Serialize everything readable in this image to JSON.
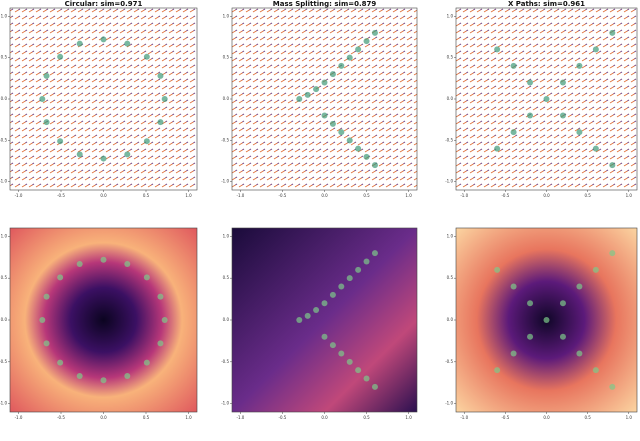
{
  "chart_data": [
    {
      "type": "scatter",
      "title": "Circular: sim=0.971",
      "color": "#3f9a78",
      "x": [
        0.72,
        0.67,
        0.51,
        0.28,
        0,
        -0.28,
        -0.51,
        -0.67,
        -0.72,
        -0.67,
        -0.51,
        -0.28,
        0,
        0.28,
        0.51,
        0.67
      ],
      "y": [
        0,
        0.28,
        0.51,
        0.67,
        0.72,
        0.67,
        0.51,
        0.28,
        0,
        -0.28,
        -0.51,
        -0.67,
        -0.72,
        -0.67,
        -0.51,
        -0.28
      ],
      "xlim": [
        -1.1,
        1.1
      ],
      "ylim": [
        -1.1,
        1.1
      ],
      "xticks": [
        {
          "value": -1,
          "label": "-1.0"
        },
        {
          "value": -0.5,
          "label": "-0.5"
        },
        {
          "value": 0,
          "label": "0.0"
        },
        {
          "value": 0.5,
          "label": "0.5"
        },
        {
          "value": 1,
          "label": "1.0"
        }
      ],
      "yticks": [
        {
          "value": -1,
          "label": "-1.0"
        },
        {
          "value": -0.5,
          "label": "-0.5"
        },
        {
          "value": 0,
          "label": "0.0"
        },
        {
          "value": 0.5,
          "label": "0.5"
        },
        {
          "value": 1,
          "label": "1.0"
        }
      ]
    },
    {
      "type": "scatter",
      "title": "Mass Splitting: sim=0.879",
      "color": "#3f9a78",
      "x": [
        -0.3,
        -0.2,
        -0.1,
        0,
        0.1,
        0.2,
        0.3,
        0.4,
        0.5,
        0.6,
        0,
        0.1,
        0.2,
        0.3,
        0.4,
        0.5,
        0.6
      ],
      "y": [
        0,
        0.05,
        0.12,
        0.2,
        0.3,
        0.4,
        0.5,
        0.6,
        0.7,
        0.8,
        -0.2,
        -0.3,
        -0.4,
        -0.5,
        -0.6,
        -0.7,
        -0.8
      ],
      "xlim": [
        -1.1,
        1.1
      ],
      "ylim": [
        -1.1,
        1.1
      ],
      "xticks": [
        {
          "value": -1,
          "label": "-1.0"
        },
        {
          "value": -0.5,
          "label": "-0.5"
        },
        {
          "value": 0,
          "label": "0.0"
        },
        {
          "value": 0.5,
          "label": "0.5"
        },
        {
          "value": 1,
          "label": "1.0"
        }
      ],
      "yticks": [
        {
          "value": -1,
          "label": "-1.0"
        },
        {
          "value": -0.5,
          "label": "-0.5"
        },
        {
          "value": 0,
          "label": "0.0"
        },
        {
          "value": 0.5,
          "label": "0.5"
        },
        {
          "value": 1,
          "label": "1.0"
        }
      ]
    },
    {
      "type": "scatter",
      "title": "X Paths: sim=0.961",
      "color": "#3f9a78",
      "x": [
        -0.6,
        -0.4,
        -0.2,
        0,
        0.2,
        0.4,
        0.6,
        0.8,
        -0.6,
        -0.4,
        -0.2,
        0.2,
        0.4,
        0.6,
        0.8
      ],
      "y": [
        0.6,
        0.4,
        0.2,
        0,
        -0.2,
        -0.4,
        -0.6,
        -0.8,
        -0.6,
        -0.4,
        -0.2,
        0.2,
        0.4,
        0.6,
        0.8
      ],
      "xlim": [
        -1.1,
        1.1
      ],
      "ylim": [
        -1.1,
        1.1
      ],
      "xticks": [
        {
          "value": -1,
          "label": "-1.0"
        },
        {
          "value": -0.5,
          "label": "-0.5"
        },
        {
          "value": 0,
          "label": "0.0"
        },
        {
          "value": 0.5,
          "label": "0.5"
        },
        {
          "value": 1,
          "label": "1.0"
        }
      ],
      "yticks": [
        {
          "value": -1,
          "label": "-1.0"
        },
        {
          "value": -0.5,
          "label": "-0.5"
        },
        {
          "value": 0,
          "label": "0.0"
        },
        {
          "value": 0.5,
          "label": "0.5"
        },
        {
          "value": 1,
          "label": "1.0"
        }
      ]
    },
    {
      "type": "scatter",
      "color": "#7ec98a",
      "x": [
        0.72,
        0.67,
        0.51,
        0.28,
        0,
        -0.28,
        -0.51,
        -0.67,
        -0.72,
        -0.67,
        -0.51,
        -0.28,
        0,
        0.28,
        0.51,
        0.67
      ],
      "y": [
        0,
        0.28,
        0.51,
        0.67,
        0.72,
        0.67,
        0.51,
        0.28,
        0,
        -0.28,
        -0.51,
        -0.67,
        -0.72,
        -0.67,
        -0.51,
        -0.28
      ],
      "xlim": [
        -1.1,
        1.1
      ],
      "ylim": [
        -1.1,
        1.1
      ],
      "xticks": [
        {
          "value": -1,
          "label": "-1.0"
        },
        {
          "value": -0.5,
          "label": "-0.5"
        },
        {
          "value": 0,
          "label": "0.0"
        },
        {
          "value": 0.5,
          "label": "0.5"
        },
        {
          "value": 1,
          "label": "1.0"
        }
      ],
      "yticks": [
        {
          "value": -1,
          "label": "-1.0"
        },
        {
          "value": -0.5,
          "label": "-0.5"
        },
        {
          "value": 0,
          "label": "0.0"
        },
        {
          "value": 0.5,
          "label": "0.5"
        },
        {
          "value": 1,
          "label": "1.0"
        }
      ]
    },
    {
      "type": "scatter",
      "color": "#7ec98a",
      "x": [
        -0.3,
        -0.2,
        -0.1,
        0,
        0.1,
        0.2,
        0.3,
        0.4,
        0.5,
        0.6,
        0,
        0.1,
        0.2,
        0.3,
        0.4,
        0.5,
        0.6
      ],
      "y": [
        0,
        0.05,
        0.12,
        0.2,
        0.3,
        0.4,
        0.5,
        0.6,
        0.7,
        0.8,
        -0.2,
        -0.3,
        -0.4,
        -0.5,
        -0.6,
        -0.7,
        -0.8
      ],
      "xlim": [
        -1.1,
        1.1
      ],
      "ylim": [
        -1.1,
        1.1
      ],
      "xticks": [
        {
          "value": -1,
          "label": "-1.0"
        },
        {
          "value": -0.5,
          "label": "-0.5"
        },
        {
          "value": 0,
          "label": "0.0"
        },
        {
          "value": 0.5,
          "label": "0.5"
        },
        {
          "value": 1,
          "label": "1.0"
        }
      ],
      "yticks": [
        {
          "value": -1,
          "label": "-1.0"
        },
        {
          "value": -0.5,
          "label": "-0.5"
        },
        {
          "value": 0,
          "label": "0.0"
        },
        {
          "value": 0.5,
          "label": "0.5"
        },
        {
          "value": 1,
          "label": "1.0"
        }
      ]
    },
    {
      "type": "scatter",
      "color": "#7ec98a",
      "x": [
        -0.6,
        -0.4,
        -0.2,
        0,
        0.2,
        0.4,
        0.6,
        0.8,
        -0.6,
        -0.4,
        -0.2,
        0.2,
        0.4,
        0.6,
        0.8
      ],
      "y": [
        0.6,
        0.4,
        0.2,
        0,
        -0.2,
        -0.4,
        -0.6,
        -0.8,
        -0.6,
        -0.4,
        -0.2,
        0.2,
        0.4,
        0.6,
        0.8
      ],
      "xlim": [
        -1.1,
        1.1
      ],
      "ylim": [
        -1.1,
        1.1
      ],
      "xticks": [
        {
          "value": -1,
          "label": "-1.0"
        },
        {
          "value": -0.5,
          "label": "-0.5"
        },
        {
          "value": 0,
          "label": "0.0"
        },
        {
          "value": 0.5,
          "label": "0.5"
        },
        {
          "value": 1,
          "label": "1.0"
        }
      ],
      "yticks": [
        {
          "value": -1,
          "label": "-1.0"
        },
        {
          "value": -0.5,
          "label": "-0.5"
        },
        {
          "value": 0,
          "label": "0.0"
        },
        {
          "value": 0.5,
          "label": "0.5"
        },
        {
          "value": 1,
          "label": "1.0"
        }
      ]
    }
  ]
}
